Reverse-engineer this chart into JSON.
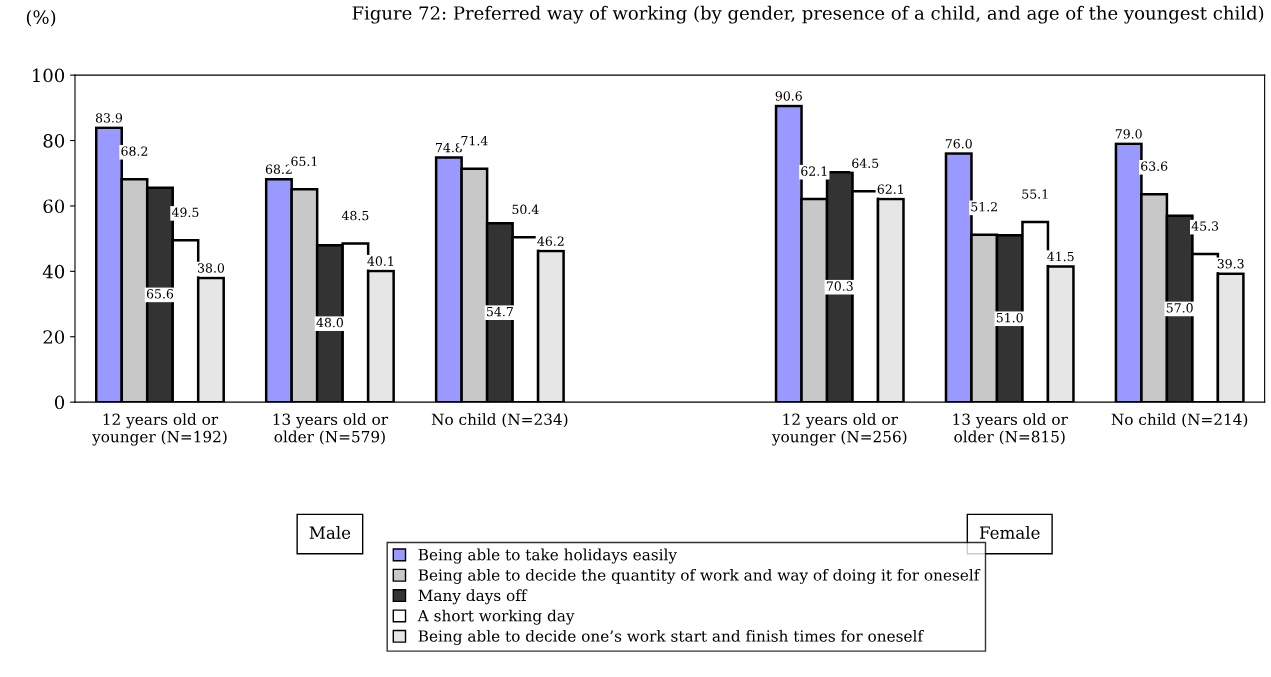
{
  "chart_data": {
    "type": "bar",
    "title": "Figure 72: Preferred way of working (by gender, presence of a child, and age of the youngest child)",
    "ylabel": "(%)",
    "categories": [
      "12 years old or\nyounger (N=192)",
      "13 years old or\nolder (N=579)",
      "No child (N=234)",
      null,
      "12 years old or\nyounger (N=256)",
      "13 years old or\nolder (N=815)",
      "No child (N=214)"
    ],
    "series": [
      {
        "name": "Being able to take holidays easily",
        "color": "#9999ff",
        "values": [
          83.9,
          68.2,
          74.8,
          null,
          90.6,
          76.0,
          79.0
        ],
        "value_labels": [
          "83.9",
          "68.2",
          "74.8",
          null,
          "90.6",
          "76.0",
          "79.0"
        ]
      },
      {
        "name": "Being able to decide the quantity of work and way of doing it for oneself",
        "color": "#c8c8c8",
        "values": [
          68.2,
          65.1,
          71.4,
          null,
          62.1,
          51.2,
          63.6
        ],
        "value_labels": [
          "68.2",
          "65.1",
          "71.4",
          null,
          "62.1",
          "51.2",
          "63.6"
        ]
      },
      {
        "name": "Many days off",
        "color": "#333333",
        "values": [
          65.6,
          48.0,
          54.7,
          null,
          70.3,
          51.0,
          57.0
        ],
        "value_labels": [
          "65.6",
          "48.0",
          "54.7",
          null,
          "70.3",
          "51.0",
          "57.0"
        ]
      },
      {
        "name": "A short working day",
        "color": "#ffffff",
        "values": [
          49.5,
          48.5,
          50.4,
          null,
          64.5,
          55.1,
          45.3
        ],
        "value_labels": [
          "49.5",
          "48.5",
          "50.4",
          null,
          "64.5",
          "55.1",
          "45.3"
        ]
      },
      {
        "name": "Being able to decide one’s work start and finish times for oneself",
        "color": "#e6e6e6",
        "values": [
          38.0,
          40.1,
          46.2,
          null,
          62.1,
          41.5,
          39.3
        ],
        "value_labels": [
          "38.0",
          "40.1",
          "46.2",
          null,
          "62.1",
          "41.5",
          "39.3"
        ]
      }
    ],
    "ylim": [
      0,
      100
    ],
    "yticks": [
      0,
      20,
      40,
      60,
      80,
      100
    ],
    "grid": false,
    "legend": "bottom",
    "annotations": [
      "Male",
      "Female"
    ]
  }
}
